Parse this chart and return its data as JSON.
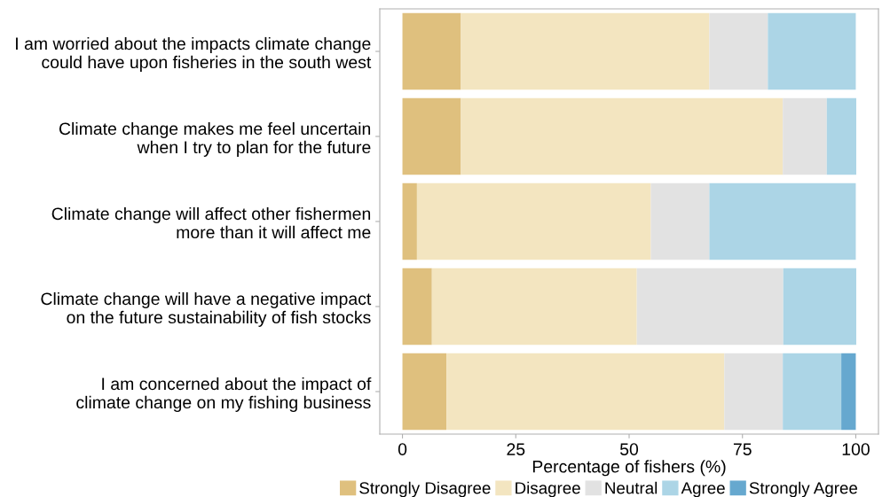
{
  "chart_data": {
    "type": "bar",
    "orientation": "horizontal",
    "stacked": true,
    "xlabel": "Percentage of fishers (%)",
    "categories": [
      "I am worried about the impacts climate change\ncould have upon fisheries in the south west",
      "Climate change makes me feel uncertain\nwhen I try to plan for the future",
      "Climate change will affect other fishermen\nmore than it will affect me",
      "Climate change will have a negative impact\non the future sustainability of fish stocks",
      "I am concerned about the impact of\nclimate change on my fishing business"
    ],
    "series": [
      {
        "name": "Strongly Disagree",
        "color": "#dfc07e",
        "values": [
          12.9,
          12.9,
          3.2,
          6.5,
          9.7
        ]
      },
      {
        "name": "Disagree",
        "color": "#f3e5c0",
        "values": [
          54.8,
          71.0,
          51.6,
          45.2,
          61.3
        ]
      },
      {
        "name": "Neutral",
        "color": "#e2e2e2",
        "values": [
          12.9,
          9.7,
          12.9,
          32.3,
          12.9
        ]
      },
      {
        "name": "Agree",
        "color": "#acd5e6",
        "values": [
          19.4,
          6.5,
          32.3,
          16.1,
          12.9
        ]
      },
      {
        "name": "Strongly Agree",
        "color": "#66a8cf",
        "values": [
          0,
          0,
          0,
          0,
          3.2
        ]
      }
    ],
    "xlim": [
      -5,
      105
    ],
    "xticks": [
      0,
      25,
      50,
      75,
      100
    ],
    "grid": false,
    "legend": "bottom"
  }
}
